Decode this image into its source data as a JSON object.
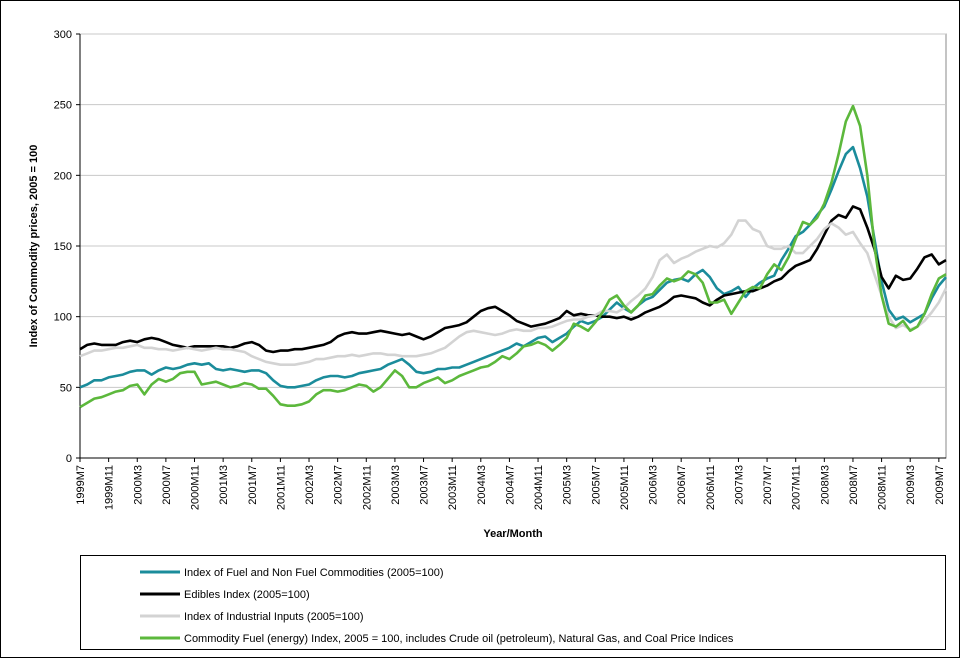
{
  "chart_data": {
    "type": "line",
    "x_label": "Year/Month",
    "y_label": "Index of Commodity prices, 2005 = 100",
    "ylim": [
      0,
      300
    ],
    "yticks": [
      0,
      50,
      100,
      150,
      200,
      250,
      300
    ],
    "grid": true,
    "legend": "bottom",
    "categories": [
      "1999M7",
      null,
      null,
      null,
      "1999M11",
      null,
      null,
      null,
      "2000M3",
      null,
      null,
      null,
      "2000M7",
      null,
      null,
      null,
      "2000M11",
      null,
      null,
      null,
      "2001M3",
      null,
      null,
      null,
      "2001M7",
      null,
      null,
      null,
      "2001M11",
      null,
      null,
      null,
      "2002M3",
      null,
      null,
      null,
      "2002M7",
      null,
      null,
      null,
      "2002M11",
      null,
      null,
      null,
      "2003M3",
      null,
      null,
      null,
      "2003M7",
      null,
      null,
      null,
      "2003M11",
      null,
      null,
      null,
      "2004M3",
      null,
      null,
      null,
      "2004M7",
      null,
      null,
      null,
      "2004M11",
      null,
      null,
      null,
      "2005M3",
      null,
      null,
      null,
      "2005M7",
      null,
      null,
      null,
      "2005M11",
      null,
      null,
      null,
      "2006M3",
      null,
      null,
      null,
      "2006M7",
      null,
      null,
      null,
      "2006M11",
      null,
      null,
      null,
      "2007M3",
      null,
      null,
      null,
      "2007M7",
      null,
      null,
      null,
      "2007M11",
      null,
      null,
      null,
      "2008M3",
      null,
      null,
      null,
      "2008M7",
      null,
      null,
      null,
      "2008M11",
      null,
      null,
      null,
      "2009M3",
      null,
      null,
      null,
      "2009M7",
      null
    ],
    "series": [
      {
        "name": "Index of Fuel and Non Fuel Commodities (2005=100)",
        "color": "#1b8c9b",
        "values": [
          50,
          52,
          55,
          55,
          57,
          58,
          59,
          61,
          62,
          62,
          59,
          62,
          64,
          63,
          64,
          66,
          67,
          66,
          67,
          63,
          62,
          63,
          62,
          61,
          62,
          62,
          60,
          55,
          51,
          50,
          50,
          51,
          52,
          55,
          57,
          58,
          58,
          57,
          58,
          60,
          61,
          62,
          63,
          66,
          68,
          70,
          66,
          61,
          60,
          61,
          63,
          63,
          64,
          64,
          66,
          68,
          70,
          72,
          74,
          76,
          78,
          81,
          79,
          82,
          85,
          86,
          82,
          85,
          88,
          93,
          97,
          95,
          97,
          100,
          105,
          110,
          106,
          103,
          108,
          112,
          114,
          119,
          124,
          126,
          127,
          125,
          130,
          133,
          128,
          120,
          116,
          118,
          121,
          114,
          120,
          124,
          127,
          129,
          140,
          148,
          157,
          160,
          165,
          172,
          178,
          190,
          203,
          215,
          220,
          205,
          185,
          155,
          125,
          105,
          98,
          100,
          96,
          99,
          102,
          113,
          122,
          128
        ]
      },
      {
        "name": "Edibles Index (2005=100)",
        "color": "#000000",
        "values": [
          77,
          80,
          81,
          80,
          80,
          80,
          82,
          83,
          82,
          84,
          85,
          84,
          82,
          80,
          79,
          78,
          79,
          79,
          79,
          79,
          79,
          78,
          79,
          81,
          82,
          80,
          76,
          75,
          76,
          76,
          77,
          77,
          78,
          79,
          80,
          82,
          86,
          88,
          89,
          88,
          88,
          89,
          90,
          89,
          88,
          87,
          88,
          86,
          84,
          86,
          89,
          92,
          93,
          94,
          96,
          100,
          104,
          106,
          107,
          104,
          101,
          97,
          95,
          93,
          94,
          95,
          97,
          99,
          104,
          101,
          102,
          101,
          101,
          100,
          100,
          99,
          100,
          98,
          100,
          103,
          105,
          107,
          110,
          114,
          115,
          114,
          113,
          110,
          108,
          112,
          115,
          116,
          117,
          118,
          118,
          120,
          122,
          125,
          127,
          132,
          136,
          138,
          140,
          148,
          158,
          168,
          172,
          170,
          178,
          176,
          163,
          148,
          128,
          120,
          129,
          126,
          127,
          134,
          142,
          144,
          137,
          140
        ]
      },
      {
        "name": "Index of Industrial Inputs (2005=100)",
        "color": "#d3d3d3",
        "values": [
          72,
          74,
          76,
          76,
          77,
          78,
          78,
          79,
          80,
          78,
          78,
          77,
          77,
          76,
          77,
          78,
          77,
          76,
          77,
          78,
          77,
          77,
          76,
          75,
          72,
          70,
          68,
          67,
          66,
          66,
          66,
          67,
          68,
          70,
          70,
          71,
          72,
          72,
          73,
          72,
          73,
          74,
          74,
          73,
          73,
          72,
          72,
          72,
          73,
          74,
          76,
          78,
          82,
          86,
          89,
          90,
          89,
          88,
          87,
          88,
          90,
          91,
          90,
          90,
          92,
          92,
          93,
          95,
          97,
          98,
          98,
          100,
          101,
          104,
          104,
          103,
          106,
          111,
          115,
          120,
          128,
          140,
          144,
          138,
          141,
          143,
          146,
          148,
          150,
          149,
          152,
          158,
          168,
          168,
          162,
          160,
          150,
          148,
          148,
          150,
          145,
          145,
          150,
          155,
          162,
          166,
          163,
          158,
          160,
          152,
          145,
          130,
          115,
          100,
          92,
          94,
          91,
          93,
          97,
          103,
          110,
          120
        ]
      },
      {
        "name": "Commodity Fuel (energy) Index, 2005 = 100, includes Crude oil (petroleum), Natural Gas, and Coal Price Indices",
        "color": "#5cb83c",
        "values": [
          36,
          39,
          42,
          43,
          45,
          47,
          48,
          51,
          52,
          45,
          52,
          56,
          54,
          56,
          60,
          61,
          61,
          52,
          53,
          54,
          52,
          50,
          51,
          53,
          52,
          49,
          49,
          44,
          38,
          37,
          37,
          38,
          40,
          45,
          48,
          48,
          47,
          48,
          50,
          52,
          51,
          47,
          50,
          56,
          62,
          58,
          50,
          50,
          53,
          55,
          57,
          53,
          55,
          58,
          60,
          62,
          64,
          65,
          68,
          72,
          70,
          74,
          79,
          80,
          82,
          80,
          76,
          80,
          85,
          95,
          93,
          90,
          96,
          103,
          112,
          115,
          108,
          103,
          108,
          115,
          116,
          122,
          127,
          125,
          127,
          132,
          130,
          124,
          110,
          110,
          112,
          102,
          110,
          118,
          121,
          120,
          130,
          137,
          133,
          142,
          155,
          167,
          165,
          170,
          180,
          195,
          215,
          238,
          249,
          235,
          200,
          150,
          115,
          95,
          93,
          97,
          90,
          93,
          102,
          116,
          127,
          130
        ]
      }
    ]
  }
}
